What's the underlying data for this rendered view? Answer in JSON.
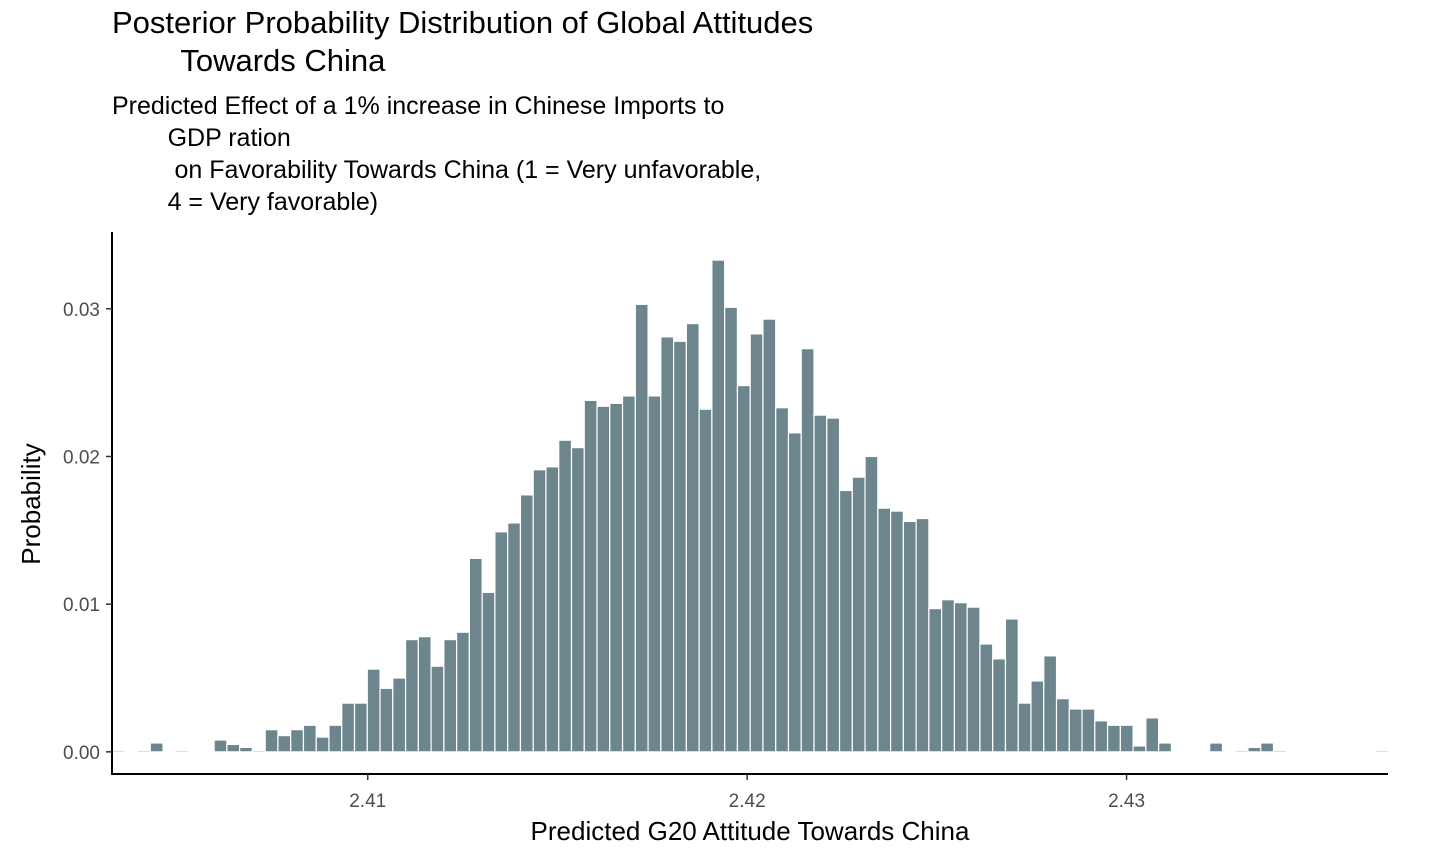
{
  "chart_data": {
    "type": "bar",
    "title": "Posterior Probability Distribution of Global Attitudes\n        Towards China",
    "subtitle": "Predicted Effect of a 1% increase in Chinese Imports to\n        GDP ration\n         on Favorability Towards China (1 = Very unfavorable,\n        4 = Very favorable)",
    "xlabel": "Predicted G20 Attitude Towards China",
    "ylabel": "Probability",
    "xlim": [
      2.40326,
      2.43689
    ],
    "ylim": [
      -0.0015,
      0.0352
    ],
    "x_ticks": [
      2.41,
      2.42,
      2.43
    ],
    "x_tick_labels": [
      "2.41",
      "2.42",
      "2.43"
    ],
    "y_ticks": [
      0.0,
      0.01,
      0.02,
      0.03
    ],
    "y_tick_labels": [
      "0.00",
      "0.01",
      "0.02",
      "0.03"
    ],
    "bin_start": 2.40326,
    "bin_width": 0.0003364,
    "bar_color": "#6d858c",
    "grid": false,
    "values": [
      0.0001,
      0.0,
      0.0001,
      0.0006,
      0.0,
      0.0001,
      0.0,
      0.0,
      0.0008,
      0.0005,
      0.0003,
      0.0001,
      0.0015,
      0.0011,
      0.0015,
      0.0018,
      0.001,
      0.0018,
      0.0033,
      0.0033,
      0.0056,
      0.0043,
      0.005,
      0.0076,
      0.0078,
      0.0058,
      0.0076,
      0.0081,
      0.0131,
      0.0108,
      0.0149,
      0.0155,
      0.0174,
      0.0191,
      0.0193,
      0.0211,
      0.0206,
      0.0238,
      0.0234,
      0.0236,
      0.0241,
      0.0303,
      0.0241,
      0.0281,
      0.0278,
      0.029,
      0.0232,
      0.0333,
      0.0301,
      0.0248,
      0.0283,
      0.0293,
      0.0233,
      0.0216,
      0.0273,
      0.0228,
      0.0226,
      0.0177,
      0.0186,
      0.02,
      0.0165,
      0.0163,
      0.0156,
      0.0158,
      0.0097,
      0.0103,
      0.0101,
      0.0098,
      0.0073,
      0.0063,
      0.009,
      0.0033,
      0.0048,
      0.0065,
      0.0036,
      0.0029,
      0.0029,
      0.0021,
      0.0018,
      0.0018,
      0.0004,
      0.0023,
      0.0006,
      0.0,
      0.0,
      0.0,
      0.0006,
      0.0,
      0.0001,
      0.0003,
      0.0006,
      0.0001,
      0.0,
      0.0,
      0.0,
      0.0,
      0.0,
      0.0,
      0.0,
      0.0001
    ]
  }
}
